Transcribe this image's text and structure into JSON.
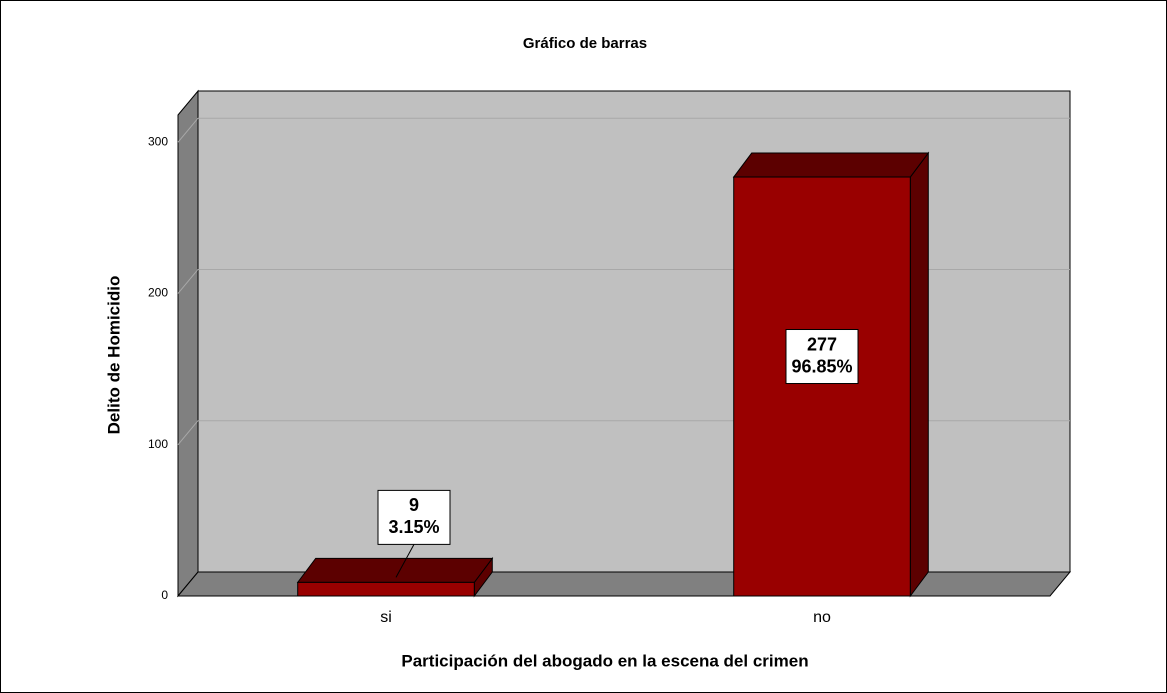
{
  "chart_data": {
    "type": "bar3d",
    "title": "Gráfico de barras",
    "x_label": "Participación del abogado en la escena del crimen",
    "y_label": "Delito de Homicidio",
    "categories": [
      "si",
      "no"
    ],
    "values": [
      9,
      277
    ],
    "percent_labels": [
      "3.15%",
      "96.85%"
    ],
    "color": "#990000",
    "ylim": [
      0,
      318
    ],
    "yticks": [
      0,
      100,
      200,
      300
    ],
    "grid": true
  }
}
